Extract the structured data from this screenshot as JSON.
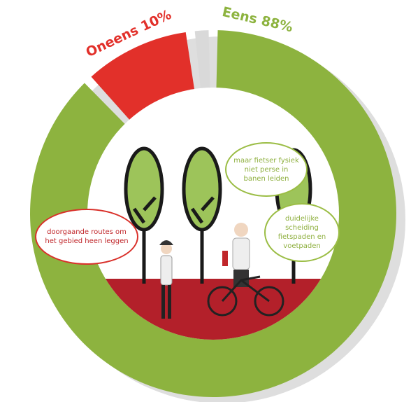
{
  "chart_data": {
    "type": "donut",
    "categories": [
      "Eens",
      "Oneens",
      null
    ],
    "values": [
      88,
      10,
      2
    ],
    "value_labels": [
      "88%",
      "10%",
      null
    ],
    "colors": [
      "#8db33f",
      "#e2302a",
      "#d9d9d9"
    ],
    "label_colors": [
      "#8db33f",
      "#e2302a",
      null
    ]
  },
  "annotations": [
    "doorgaande routes om het gebied heen leggen",
    "maar fietser fysiek niet perse in banen leiden",
    "duidelijke scheiding fietspaden en voetpaden"
  ]
}
